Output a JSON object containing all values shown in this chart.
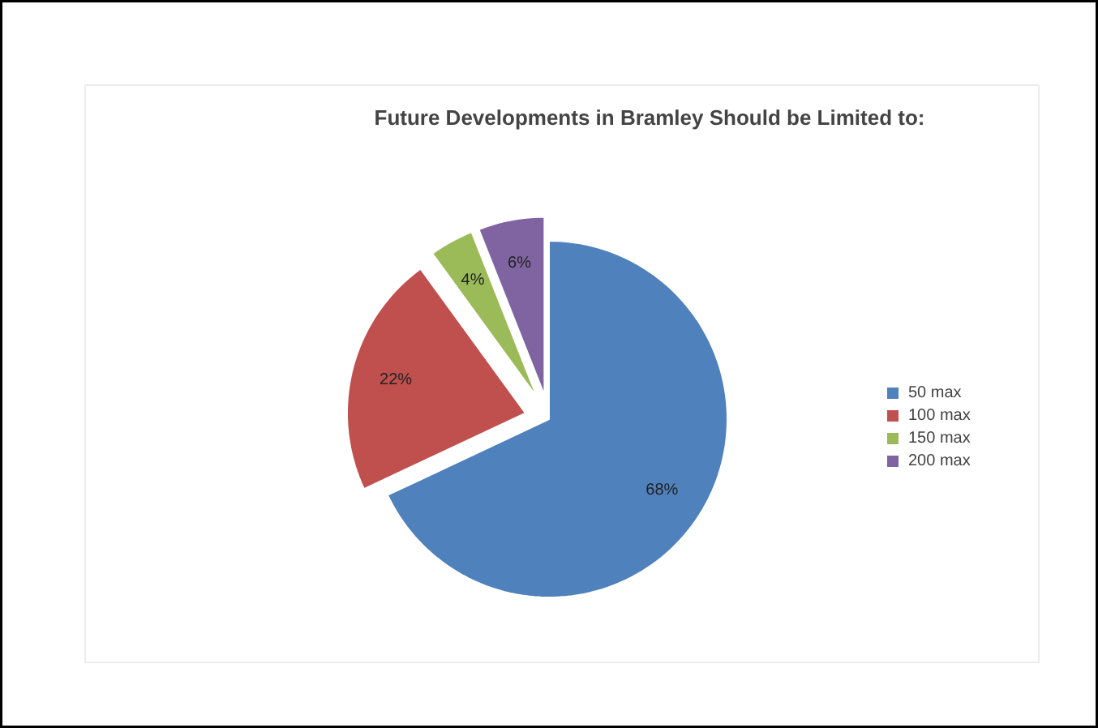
{
  "chart_data": {
    "type": "pie",
    "title": "Future Developments in Bramley Should be Limited to:",
    "categories": [
      "50 max",
      "100 max",
      "150 max",
      "200 max"
    ],
    "values": [
      68,
      22,
      4,
      6
    ],
    "colors": [
      "#4f81bd",
      "#c0504d",
      "#9bbb59",
      "#8064a2"
    ],
    "value_labels": [
      "68%",
      "22%",
      "4%",
      "6%"
    ],
    "legend": "right"
  }
}
